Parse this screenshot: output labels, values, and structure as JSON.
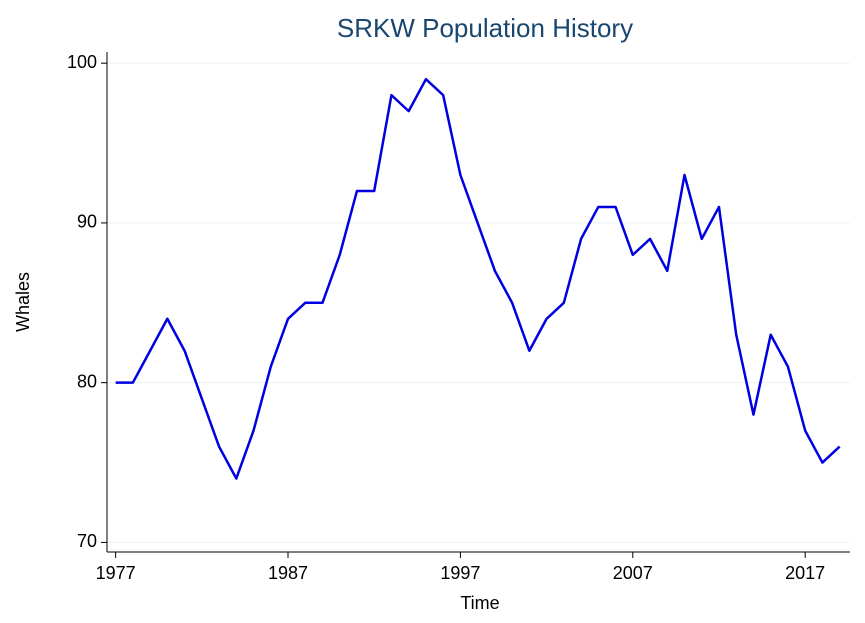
{
  "chart_data": {
    "type": "line",
    "title": "SRKW Population History",
    "x_label": "Time",
    "y_label": "Whales",
    "x": [
      1977,
      1978,
      1979,
      1980,
      1981,
      1982,
      1983,
      1984,
      1985,
      1986,
      1987,
      1988,
      1989,
      1990,
      1991,
      1992,
      1993,
      1994,
      1995,
      1996,
      1997,
      1998,
      1999,
      2000,
      2001,
      2002,
      2003,
      2004,
      2005,
      2006,
      2007,
      2008,
      2009,
      2010,
      2011,
      2012,
      2013,
      2014,
      2015,
      2016,
      2017,
      2018,
      2019
    ],
    "values": [
      80,
      80,
      82,
      84,
      82,
      79,
      76,
      74,
      77,
      81,
      84,
      85,
      85,
      88,
      92,
      92,
      98,
      97,
      99,
      98,
      93,
      90,
      87,
      85,
      82,
      84,
      85,
      89,
      91,
      91,
      88,
      89,
      87,
      93,
      89,
      91,
      83,
      78,
      83,
      81,
      77,
      75,
      76
    ],
    "color": "#0000e0",
    "xlim": [
      1976.5,
      2019.6
    ],
    "xticks": [
      1977,
      1987,
      1997,
      2007,
      2017
    ],
    "ylim": [
      69.4,
      100.7
    ],
    "yticks": [
      70,
      80,
      90,
      100
    ],
    "grid": true
  }
}
